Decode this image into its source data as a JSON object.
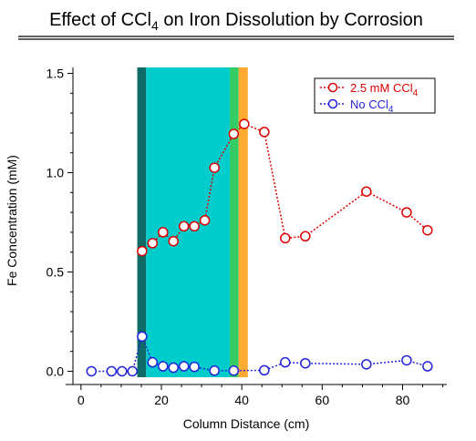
{
  "chart_data": {
    "type": "line",
    "title": "Effect of CCl4 on Iron Dissolution by Corrosion",
    "title_parts": {
      "main": "Effect of CCl",
      "sub": "4",
      "rest": " on Iron Dissolution by Corrosion"
    },
    "xlabel": "Column Distance (cm)",
    "ylabel": "Fe Concentration (mM)",
    "xlim": [
      -2,
      91
    ],
    "ylim": [
      -0.03,
      1.53
    ],
    "xticks": [
      0,
      20,
      40,
      60,
      80
    ],
    "yticks": [
      0.0,
      0.5,
      1.0,
      1.5
    ],
    "ytick_labels": [
      "0.0",
      "0.5",
      "1.0",
      "1.5"
    ],
    "grid": false,
    "legend_position": "top-right",
    "bands": [
      {
        "x0": 14.0,
        "x1": 16.2,
        "color": "#0e6b66"
      },
      {
        "x0": 16.2,
        "x1": 37.0,
        "color": "#00cccc"
      },
      {
        "x0": 37.0,
        "x1": 39.2,
        "color": "#33cc66"
      },
      {
        "x0": 39.2,
        "x1": 41.5,
        "color": "#ffaa33"
      }
    ],
    "series": [
      {
        "name": "2.5 mM CCl4",
        "legend_main": "2.5 mM CCl",
        "legend_sub": "4",
        "color": "#dd0000",
        "x": [
          15.2,
          17.8,
          20.4,
          23.0,
          25.6,
          28.2,
          30.8,
          33.2,
          38.0,
          40.6,
          45.6,
          50.8,
          55.8,
          71.0,
          81.0,
          86.2
        ],
        "y": [
          0.605,
          0.645,
          0.7,
          0.655,
          0.73,
          0.73,
          0.76,
          1.025,
          1.195,
          1.245,
          1.205,
          0.67,
          0.68,
          0.905,
          0.8,
          0.71
        ]
      },
      {
        "name": "No CCl4",
        "legend_main": "No CCl",
        "legend_sub": "4",
        "color": "#2222dd",
        "x": [
          2.6,
          7.6,
          10.2,
          12.8,
          15.2,
          17.8,
          20.4,
          23.0,
          25.6,
          28.2,
          33.2,
          38.0,
          45.6,
          50.8,
          55.8,
          71.0,
          81.0,
          86.2
        ],
        "y": [
          0.0,
          0.0,
          0.0,
          0.0,
          0.175,
          0.045,
          0.025,
          0.018,
          0.025,
          0.022,
          0.003,
          0.003,
          0.005,
          0.045,
          0.04,
          0.035,
          0.055,
          0.025
        ]
      }
    ]
  }
}
